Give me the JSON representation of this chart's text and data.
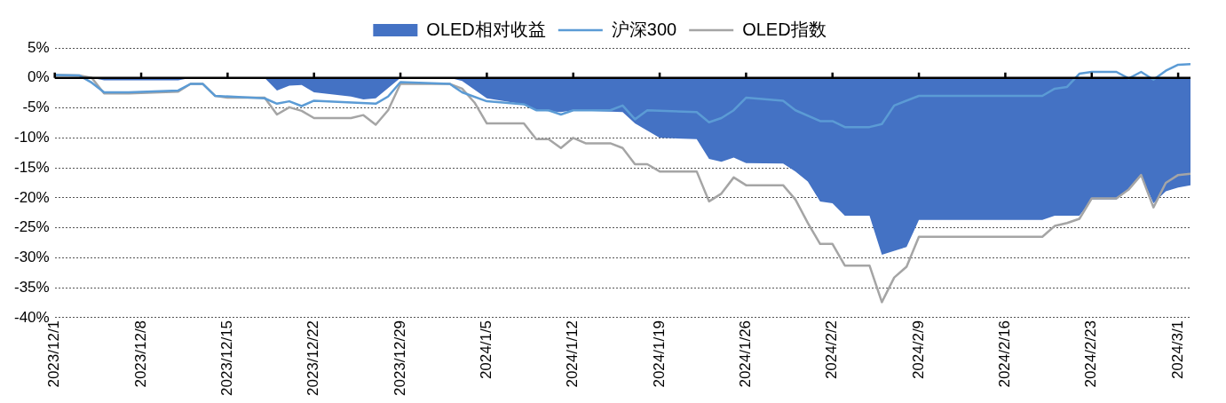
{
  "chart_data": {
    "type": "line",
    "legend": "top",
    "grid": "y",
    "xlim": [
      "2023-12-01",
      "2024-03-02"
    ],
    "xticks": [
      {
        "value": "2023-12-01",
        "label": "2023/12/1"
      },
      {
        "value": "2023-12-08",
        "label": "2023/12/8"
      },
      {
        "value": "2023-12-15",
        "label": "2023/12/15"
      },
      {
        "value": "2023-12-22",
        "label": "2023/12/22"
      },
      {
        "value": "2023-12-29",
        "label": "2023/12/29"
      },
      {
        "value": "2024-01-05",
        "label": "2024/1/5"
      },
      {
        "value": "2024-01-12",
        "label": "2024/1/12"
      },
      {
        "value": "2024-01-19",
        "label": "2024/1/19"
      },
      {
        "value": "2024-01-26",
        "label": "2024/1/26"
      },
      {
        "value": "2024-02-02",
        "label": "2024/2/2"
      },
      {
        "value": "2024-02-09",
        "label": "2024/2/9"
      },
      {
        "value": "2024-02-16",
        "label": "2024/2/16"
      },
      {
        "value": "2024-02-23",
        "label": "2024/2/23"
      },
      {
        "value": "2024-03-01",
        "label": "2024/3/1"
      }
    ],
    "ylim": [
      -40,
      5
    ],
    "yticks": [
      {
        "value": 5,
        "label": "5%"
      },
      {
        "value": 0,
        "label": "0%"
      },
      {
        "value": -5,
        "label": "-5%"
      },
      {
        "value": -10,
        "label": "-10%"
      },
      {
        "value": -15,
        "label": "-15%"
      },
      {
        "value": -20,
        "label": "-20%"
      },
      {
        "value": -25,
        "label": "-25%"
      },
      {
        "value": -30,
        "label": "-30%"
      },
      {
        "value": -35,
        "label": "-35%"
      },
      {
        "value": -40,
        "label": "-40%"
      }
    ],
    "ref_lines": [
      {
        "axis": "y",
        "value": 0,
        "color": "#000000"
      }
    ],
    "series": [
      {
        "name": "OLED相对收益",
        "type": "area",
        "color": "#4472c4",
        "x": [
          "2023-12-01",
          "2023-12-04",
          "2023-12-05",
          "2023-12-11",
          "2023-12-12",
          "2023-12-18",
          "2023-12-19",
          "2023-12-20",
          "2023-12-21",
          "2023-12-22",
          "2023-12-25",
          "2023-12-26",
          "2023-12-27",
          "2023-12-29",
          "2024-01-02",
          "2024-01-03",
          "2024-01-05",
          "2024-01-08",
          "2024-01-09",
          "2024-01-11",
          "2024-01-12",
          "2024-01-16",
          "2024-01-17",
          "2024-01-19",
          "2024-01-22",
          "2024-01-23",
          "2024-01-24",
          "2024-01-25",
          "2024-01-26",
          "2024-01-29",
          "2024-01-30",
          "2024-01-31",
          "2024-02-01",
          "2024-02-02",
          "2024-02-03",
          "2024-02-05",
          "2024-02-06",
          "2024-02-08",
          "2024-02-09",
          "2024-02-19",
          "2024-02-20",
          "2024-02-22",
          "2024-02-23",
          "2024-02-25",
          "2024-02-26",
          "2024-02-27",
          "2024-02-28",
          "2024-02-29",
          "2024-03-01",
          "2024-03-02"
        ],
        "values": [
          0,
          0,
          -0.4,
          -0.4,
          0,
          0,
          -2.1,
          -1.3,
          -1.2,
          -2.4,
          -3.1,
          -3.6,
          -3.4,
          0,
          0,
          -0.5,
          -3.4,
          -4.4,
          -5.4,
          -5.7,
          -5.4,
          -5.7,
          -7.6,
          -10,
          -10.2,
          -13.5,
          -14,
          -13.3,
          -14.2,
          -14.3,
          -15.6,
          -17.3,
          -20.6,
          -20.9,
          -23,
          -23,
          -29.5,
          -28.2,
          -23.7,
          -23.7,
          -23,
          -23,
          -20.3,
          -20.3,
          -18.6,
          -16.3,
          -20.9,
          -18.9,
          -18.3,
          -17.9
        ]
      },
      {
        "name": "沪深300",
        "type": "line",
        "color": "#5b9bd5",
        "x": [
          "2023-12-01",
          "2023-12-03",
          "2023-12-04",
          "2023-12-05",
          "2023-12-07",
          "2023-12-11",
          "2023-12-12",
          "2023-12-13",
          "2023-12-14",
          "2023-12-18",
          "2023-12-19",
          "2023-12-20",
          "2023-12-21",
          "2023-12-22",
          "2023-12-27",
          "2023-12-28",
          "2023-12-29",
          "2024-01-02",
          "2024-01-03",
          "2024-01-05",
          "2024-01-08",
          "2024-01-09",
          "2024-01-10",
          "2024-01-11",
          "2024-01-12",
          "2024-01-15",
          "2024-01-16",
          "2024-01-17",
          "2024-01-18",
          "2024-01-22",
          "2024-01-23",
          "2024-01-24",
          "2024-01-25",
          "2024-01-26",
          "2024-01-29",
          "2024-01-30",
          "2024-02-01",
          "2024-02-02",
          "2024-02-03",
          "2024-02-05",
          "2024-02-06",
          "2024-02-07",
          "2024-02-09",
          "2024-02-19",
          "2024-02-20",
          "2024-02-21",
          "2024-02-22",
          "2024-02-23",
          "2024-02-25",
          "2024-02-26",
          "2024-02-27",
          "2024-02-28",
          "2024-02-29",
          "2024-03-01",
          "2024-03-02"
        ],
        "values": [
          0.5,
          0.4,
          -0.8,
          -2.4,
          -2.4,
          -2.1,
          -1,
          -1,
          -3,
          -3.4,
          -4.3,
          -3.9,
          -4.7,
          -3.8,
          -4.3,
          -3.1,
          -0.7,
          -1,
          -2.4,
          -3.9,
          -4.4,
          -5.4,
          -5.4,
          -6.1,
          -5.4,
          -5.4,
          -4.6,
          -6.9,
          -5.4,
          -5.7,
          -7.4,
          -6.7,
          -5.4,
          -3.3,
          -3.8,
          -5.4,
          -7.2,
          -7.2,
          -8.2,
          -8.2,
          -7.7,
          -4.6,
          -3,
          -3,
          -1.8,
          -1.5,
          0.7,
          1,
          1,
          -0.1,
          1,
          -0.3,
          1.2,
          2.2,
          2.3
        ]
      },
      {
        "name": "OLED指数",
        "type": "line",
        "color": "#a5a5a5",
        "x": [
          "2023-12-01",
          "2023-12-03",
          "2023-12-04",
          "2023-12-05",
          "2023-12-07",
          "2023-12-11",
          "2023-12-12",
          "2023-12-13",
          "2023-12-14",
          "2023-12-15",
          "2023-12-18",
          "2023-12-19",
          "2023-12-20",
          "2023-12-21",
          "2023-12-22",
          "2023-12-25",
          "2023-12-26",
          "2023-12-27",
          "2023-12-28",
          "2023-12-29",
          "2024-01-02",
          "2024-01-03",
          "2024-01-04",
          "2024-01-05",
          "2024-01-08",
          "2024-01-09",
          "2024-01-10",
          "2024-01-11",
          "2024-01-12",
          "2024-01-13",
          "2024-01-15",
          "2024-01-16",
          "2024-01-17",
          "2024-01-18",
          "2024-01-19",
          "2024-01-22",
          "2024-01-23",
          "2024-01-24",
          "2024-01-25",
          "2024-01-26",
          "2024-01-29",
          "2024-01-30",
          "2024-01-31",
          "2024-02-01",
          "2024-02-02",
          "2024-02-03",
          "2024-02-05",
          "2024-02-06",
          "2024-02-07",
          "2024-02-08",
          "2024-02-09",
          "2024-02-19",
          "2024-02-20",
          "2024-02-21",
          "2024-02-22",
          "2024-02-23",
          "2024-02-25",
          "2024-02-26",
          "2024-02-27",
          "2024-02-28",
          "2024-02-29",
          "2024-03-01",
          "2024-03-02"
        ],
        "values": [
          0.5,
          0.4,
          0,
          -2.6,
          -2.6,
          -2.3,
          -1,
          -1,
          -3,
          -3.3,
          -3.3,
          -6.1,
          -4.9,
          -5.5,
          -6.7,
          -6.7,
          -6.2,
          -7.8,
          -5.4,
          -1,
          -1,
          -1.8,
          -4.1,
          -7.6,
          -7.6,
          -10.2,
          -10.2,
          -11.7,
          -10,
          -10.9,
          -10.9,
          -11.7,
          -14.4,
          -14.4,
          -15.6,
          -15.6,
          -20.6,
          -19.3,
          -16.6,
          -17.9,
          -17.9,
          -20.3,
          -24.2,
          -27.7,
          -27.7,
          -31.3,
          -31.3,
          -37.4,
          -33.3,
          -31.5,
          -26.5,
          -26.5,
          -24.7,
          -24.2,
          -23.5,
          -20.1,
          -20.1,
          -18.6,
          -16.2,
          -21.6,
          -17.5,
          -16.2,
          -16
        ]
      }
    ]
  }
}
